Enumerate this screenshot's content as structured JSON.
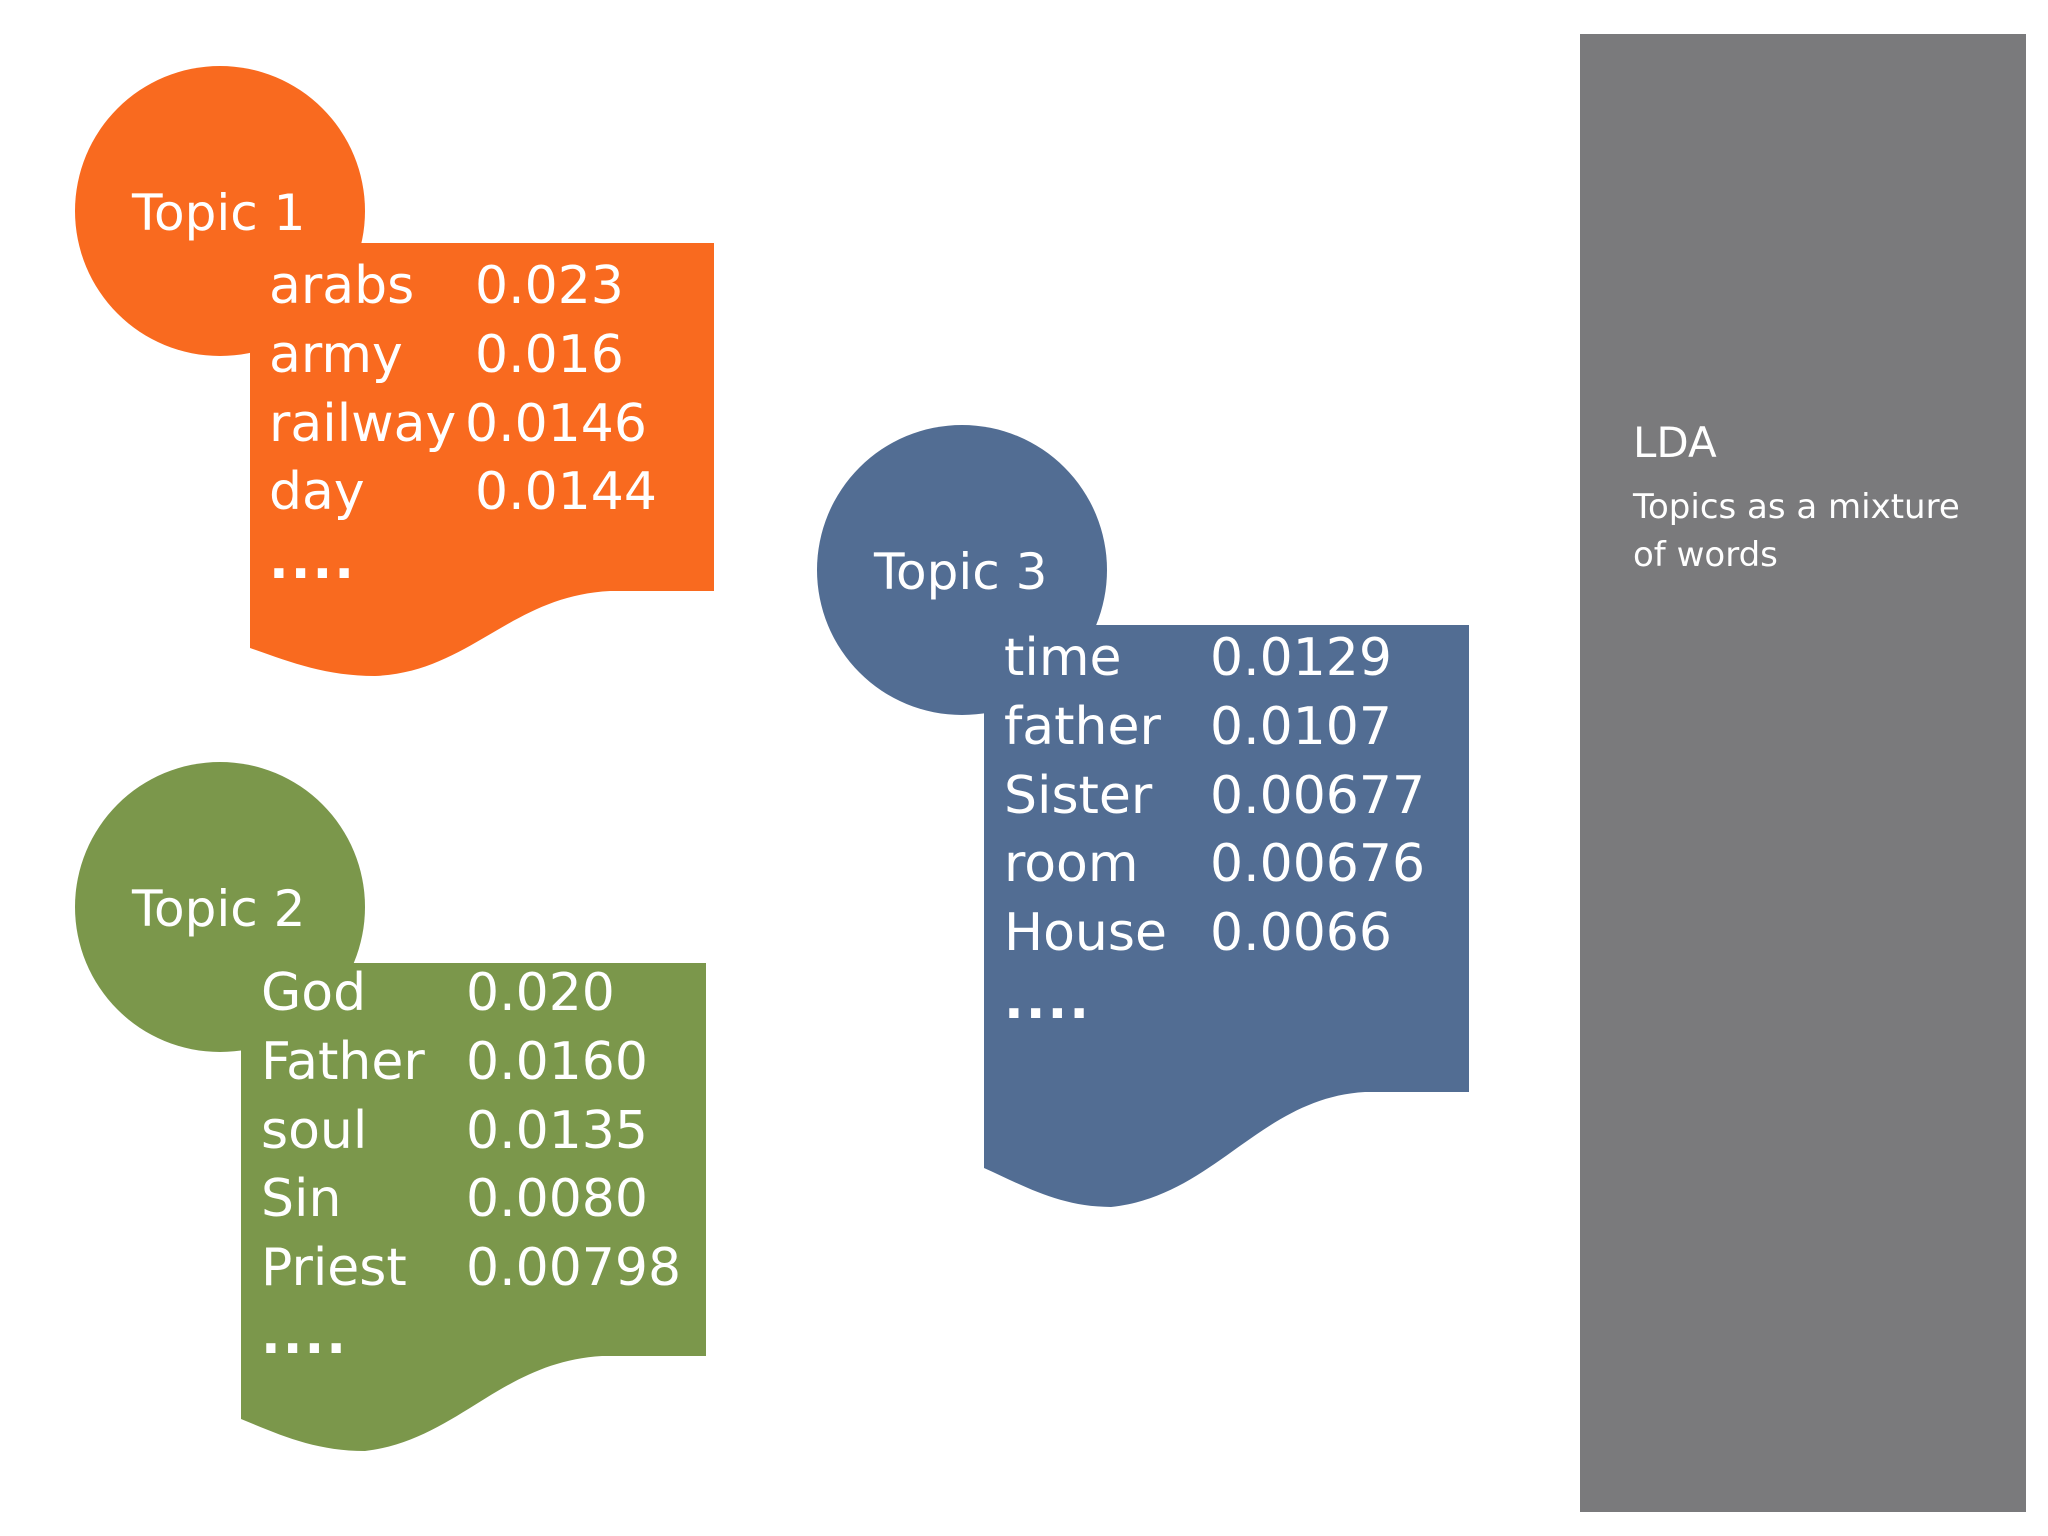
{
  "colors": {
    "topic1": "#f96a1f",
    "topic2": "#7b974b",
    "topic3": "#526d93",
    "sidebar": "#7a7a7c",
    "text": "#ffffff",
    "background": "#ffffff"
  },
  "sidebar": {
    "title": "LDA",
    "subtitle_line1": "Topics as a mixture",
    "subtitle_line2": "of words"
  },
  "topics": [
    {
      "title": "Topic 1",
      "words": [
        {
          "word": "arabs",
          "value": "0.023"
        },
        {
          "word": "army",
          "value": "0.016"
        },
        {
          "word": "railway",
          "value": "0.0146"
        },
        {
          "word": "day",
          "value": "0.0144"
        }
      ],
      "ellipsis": "...."
    },
    {
      "title": "Topic 2",
      "words": [
        {
          "word": "God",
          "value": "0.020"
        },
        {
          "word": "Father",
          "value": "0.0160"
        },
        {
          "word": "soul",
          "value": "0.0135"
        },
        {
          "word": "Sin",
          "value": "0.0080"
        },
        {
          "word": "Priest",
          "value": "0.00798"
        }
      ],
      "ellipsis": "...."
    },
    {
      "title": "Topic 3",
      "words": [
        {
          "word": "time",
          "value": "0.0129"
        },
        {
          "word": "father",
          "value": "0.0107"
        },
        {
          "word": "Sister",
          "value": "0.00677"
        },
        {
          "word": "room",
          "value": "0.00676"
        },
        {
          "word": "House",
          "value": "0.0066"
        }
      ],
      "ellipsis": "...."
    }
  ]
}
